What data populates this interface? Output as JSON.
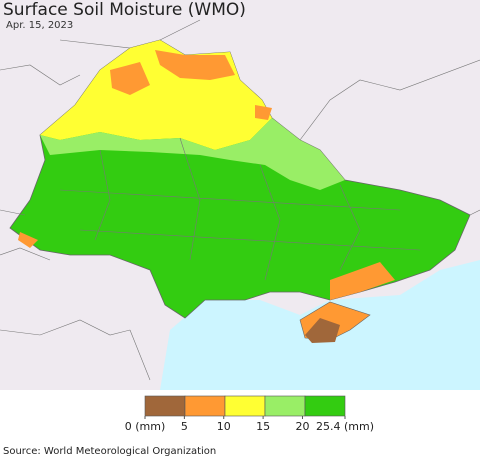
{
  "title": "Surface Soil Moisture (WMO)",
  "subtitle": "Apr. 15, 2023",
  "legend": {
    "colors": [
      "#a0673a",
      "#ff9933",
      "#ffff33",
      "#99ee66",
      "#33cc11"
    ],
    "ticks": [
      {
        "value": 0,
        "label": "0 (mm)"
      },
      5,
      10,
      15,
      20,
      {
        "value": 25.4,
        "label": "25.4 (mm)"
      }
    ]
  },
  "source": "Source: World Meteorological Organization"
}
